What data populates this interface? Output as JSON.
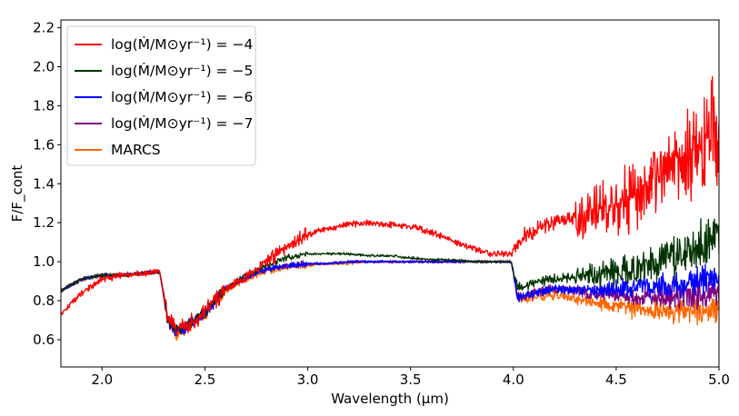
{
  "chart_data": {
    "type": "line",
    "title": "",
    "xlabel": "Wavelength (μm)",
    "ylabel": "F/F_cont",
    "xlim": [
      1.8,
      5.0
    ],
    "ylim": [
      0.46,
      2.24
    ],
    "x_ticks": [
      2.0,
      2.5,
      3.0,
      3.5,
      4.0,
      4.5,
      5.0
    ],
    "x_tick_labels": [
      "2.0",
      "2.5",
      "3.0",
      "3.5",
      "4.0",
      "4.5",
      "5.0"
    ],
    "y_ticks": [
      0.6,
      0.8,
      1.0,
      1.2,
      1.4,
      1.6,
      1.8,
      2.0,
      2.2
    ],
    "y_tick_labels": [
      "0.6",
      "0.8",
      "1.0",
      "1.2",
      "1.4",
      "1.6",
      "1.8",
      "2.0",
      "2.2"
    ],
    "grid": false,
    "legend_position": "top-left",
    "x": [
      1.8,
      1.9,
      2.0,
      2.1,
      2.2,
      2.28,
      2.32,
      2.36,
      2.4,
      2.45,
      2.5,
      2.55,
      2.6,
      2.7,
      2.8,
      2.9,
      3.0,
      3.1,
      3.2,
      3.3,
      3.4,
      3.5,
      3.6,
      3.7,
      3.8,
      3.9,
      3.99,
      4.02,
      4.05,
      4.1,
      4.2,
      4.3,
      4.4,
      4.5,
      4.6,
      4.7,
      4.8,
      4.9,
      5.0
    ],
    "series": [
      {
        "name": "log(Ṁ/M⊙yr⁻¹) = −4",
        "color": "#ff0000",
        "values": [
          0.73,
          0.84,
          0.91,
          0.93,
          0.94,
          0.95,
          0.72,
          0.65,
          0.67,
          0.7,
          0.74,
          0.8,
          0.86,
          0.92,
          1.0,
          1.08,
          1.14,
          1.17,
          1.19,
          1.2,
          1.19,
          1.18,
          1.15,
          1.11,
          1.07,
          1.04,
          1.04,
          1.08,
          1.13,
          1.16,
          1.2,
          1.23,
          1.26,
          1.3,
          1.35,
          1.42,
          1.5,
          1.58,
          1.66
        ]
      },
      {
        "name": "log(Ṁ/M⊙yr⁻¹) = −5",
        "color": "#003300",
        "values": [
          0.85,
          0.91,
          0.93,
          0.93,
          0.94,
          0.95,
          0.7,
          0.65,
          0.67,
          0.7,
          0.74,
          0.8,
          0.86,
          0.93,
          0.98,
          1.02,
          1.04,
          1.04,
          1.04,
          1.03,
          1.03,
          1.02,
          1.01,
          1.01,
          1.0,
          1.0,
          1.0,
          0.87,
          0.87,
          0.89,
          0.91,
          0.92,
          0.93,
          0.95,
          0.97,
          1.0,
          1.04,
          1.08,
          1.13
        ]
      },
      {
        "name": "log(Ṁ/M⊙yr⁻¹) = −6",
        "color": "#0000ff",
        "values": [
          0.85,
          0.91,
          0.93,
          0.93,
          0.94,
          0.95,
          0.7,
          0.64,
          0.66,
          0.7,
          0.74,
          0.8,
          0.86,
          0.92,
          0.96,
          0.98,
          0.99,
          0.99,
          1.0,
          1.0,
          1.0,
          1.0,
          1.0,
          1.0,
          1.0,
          1.0,
          1.0,
          0.82,
          0.82,
          0.84,
          0.86,
          0.85,
          0.85,
          0.86,
          0.87,
          0.88,
          0.88,
          0.9,
          0.91
        ]
      },
      {
        "name": "log(Ṁ/M⊙yr⁻¹) = −7",
        "color": "#800080",
        "values": [
          0.85,
          0.91,
          0.93,
          0.93,
          0.94,
          0.95,
          0.7,
          0.64,
          0.66,
          0.7,
          0.74,
          0.8,
          0.86,
          0.92,
          0.96,
          0.98,
          0.99,
          0.99,
          1.0,
          1.0,
          1.0,
          1.0,
          1.0,
          1.0,
          1.0,
          1.0,
          1.0,
          0.82,
          0.82,
          0.84,
          0.86,
          0.85,
          0.84,
          0.83,
          0.82,
          0.82,
          0.82,
          0.83,
          0.84
        ]
      },
      {
        "name": "MARCS",
        "color": "#ff6600",
        "values": [
          0.85,
          0.91,
          0.93,
          0.93,
          0.94,
          0.95,
          0.69,
          0.63,
          0.65,
          0.69,
          0.73,
          0.79,
          0.85,
          0.91,
          0.95,
          0.97,
          0.98,
          0.99,
          0.99,
          1.0,
          1.0,
          1.0,
          1.0,
          1.0,
          1.0,
          1.0,
          1.0,
          0.82,
          0.81,
          0.82,
          0.83,
          0.81,
          0.79,
          0.77,
          0.76,
          0.75,
          0.75,
          0.75,
          0.76
        ]
      }
    ]
  }
}
